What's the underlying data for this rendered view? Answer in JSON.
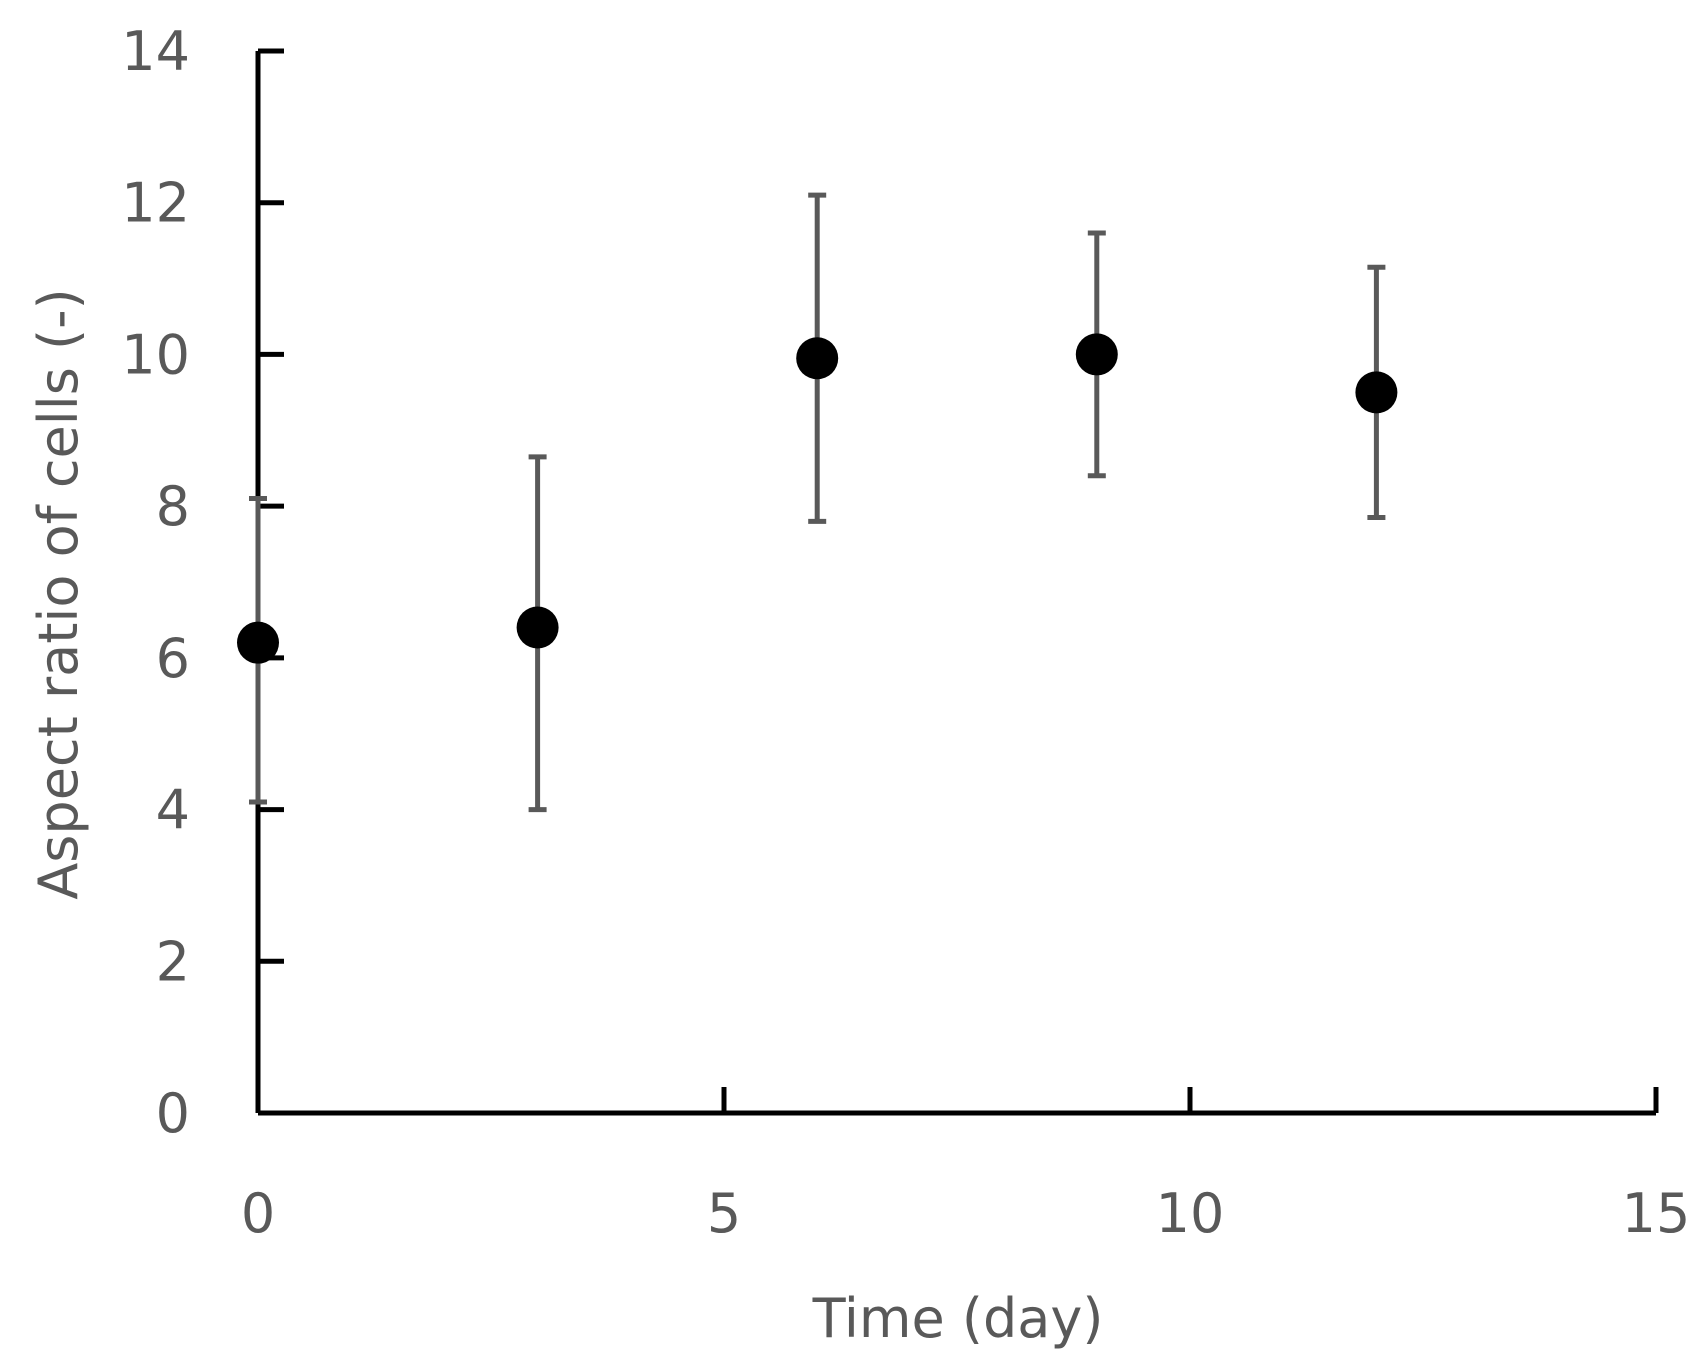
{
  "chart_data": {
    "type": "scatter",
    "title": "",
    "xlabel": "Time (day)",
    "ylabel": "Aspect ratio of cells (-)",
    "xlim": [
      0,
      15
    ],
    "ylim": [
      0,
      14
    ],
    "xticks": [
      0,
      5,
      10,
      15
    ],
    "yticks": [
      0,
      2,
      4,
      6,
      8,
      10,
      12,
      14
    ],
    "grid": false,
    "legend": "none",
    "colors": {
      "marker": "#000000",
      "error_bar": "#595959",
      "axis": "#000000",
      "text": "#595959"
    },
    "series": [
      {
        "points": [
          {
            "x": 0,
            "y": 6.2,
            "err_low": 4.1,
            "err_high": 8.1
          },
          {
            "x": 3,
            "y": 6.4,
            "err_low": 4.0,
            "err_high": 8.65
          },
          {
            "x": 6,
            "y": 9.95,
            "err_low": 7.8,
            "err_high": 12.1
          },
          {
            "x": 9,
            "y": 10.0,
            "err_low": 8.4,
            "err_high": 11.6
          },
          {
            "x": 12,
            "y": 9.5,
            "err_low": 7.85,
            "err_high": 11.15
          }
        ]
      }
    ]
  }
}
